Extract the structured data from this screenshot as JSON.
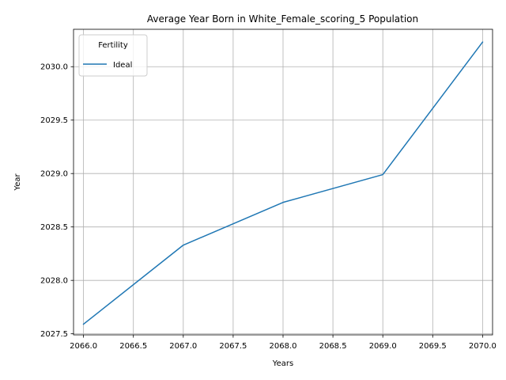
{
  "chart_data": {
    "type": "line",
    "title": "Average Year Born in White_Female_scoring_5 Population",
    "xlabel": "Years",
    "ylabel": "Year",
    "xlim": [
      2065.9,
      2070.1
    ],
    "ylim": [
      2027.49,
      2030.35
    ],
    "xticks": [
      2066.0,
      2066.5,
      2067.0,
      2067.5,
      2068.0,
      2068.5,
      2069.0,
      2069.5,
      2070.0
    ],
    "xtick_labels": [
      "2066.0",
      "2066.5",
      "2067.0",
      "2067.5",
      "2068.0",
      "2068.5",
      "2069.0",
      "2069.5",
      "2070.0"
    ],
    "yticks": [
      2027.5,
      2028.0,
      2028.5,
      2029.0,
      2029.5,
      2030.0
    ],
    "ytick_labels": [
      "2027.5",
      "2028.0",
      "2028.5",
      "2029.0",
      "2029.5",
      "2030.0"
    ],
    "grid": true,
    "legend": {
      "title": "Fertility",
      "placement": "top-left"
    },
    "series": [
      {
        "name": "Ideal",
        "color": "#1f77b4",
        "x": [
          2066,
          2067,
          2068,
          2069,
          2070
        ],
        "y": [
          2027.59,
          2028.33,
          2028.73,
          2028.99,
          2030.23
        ]
      }
    ]
  }
}
